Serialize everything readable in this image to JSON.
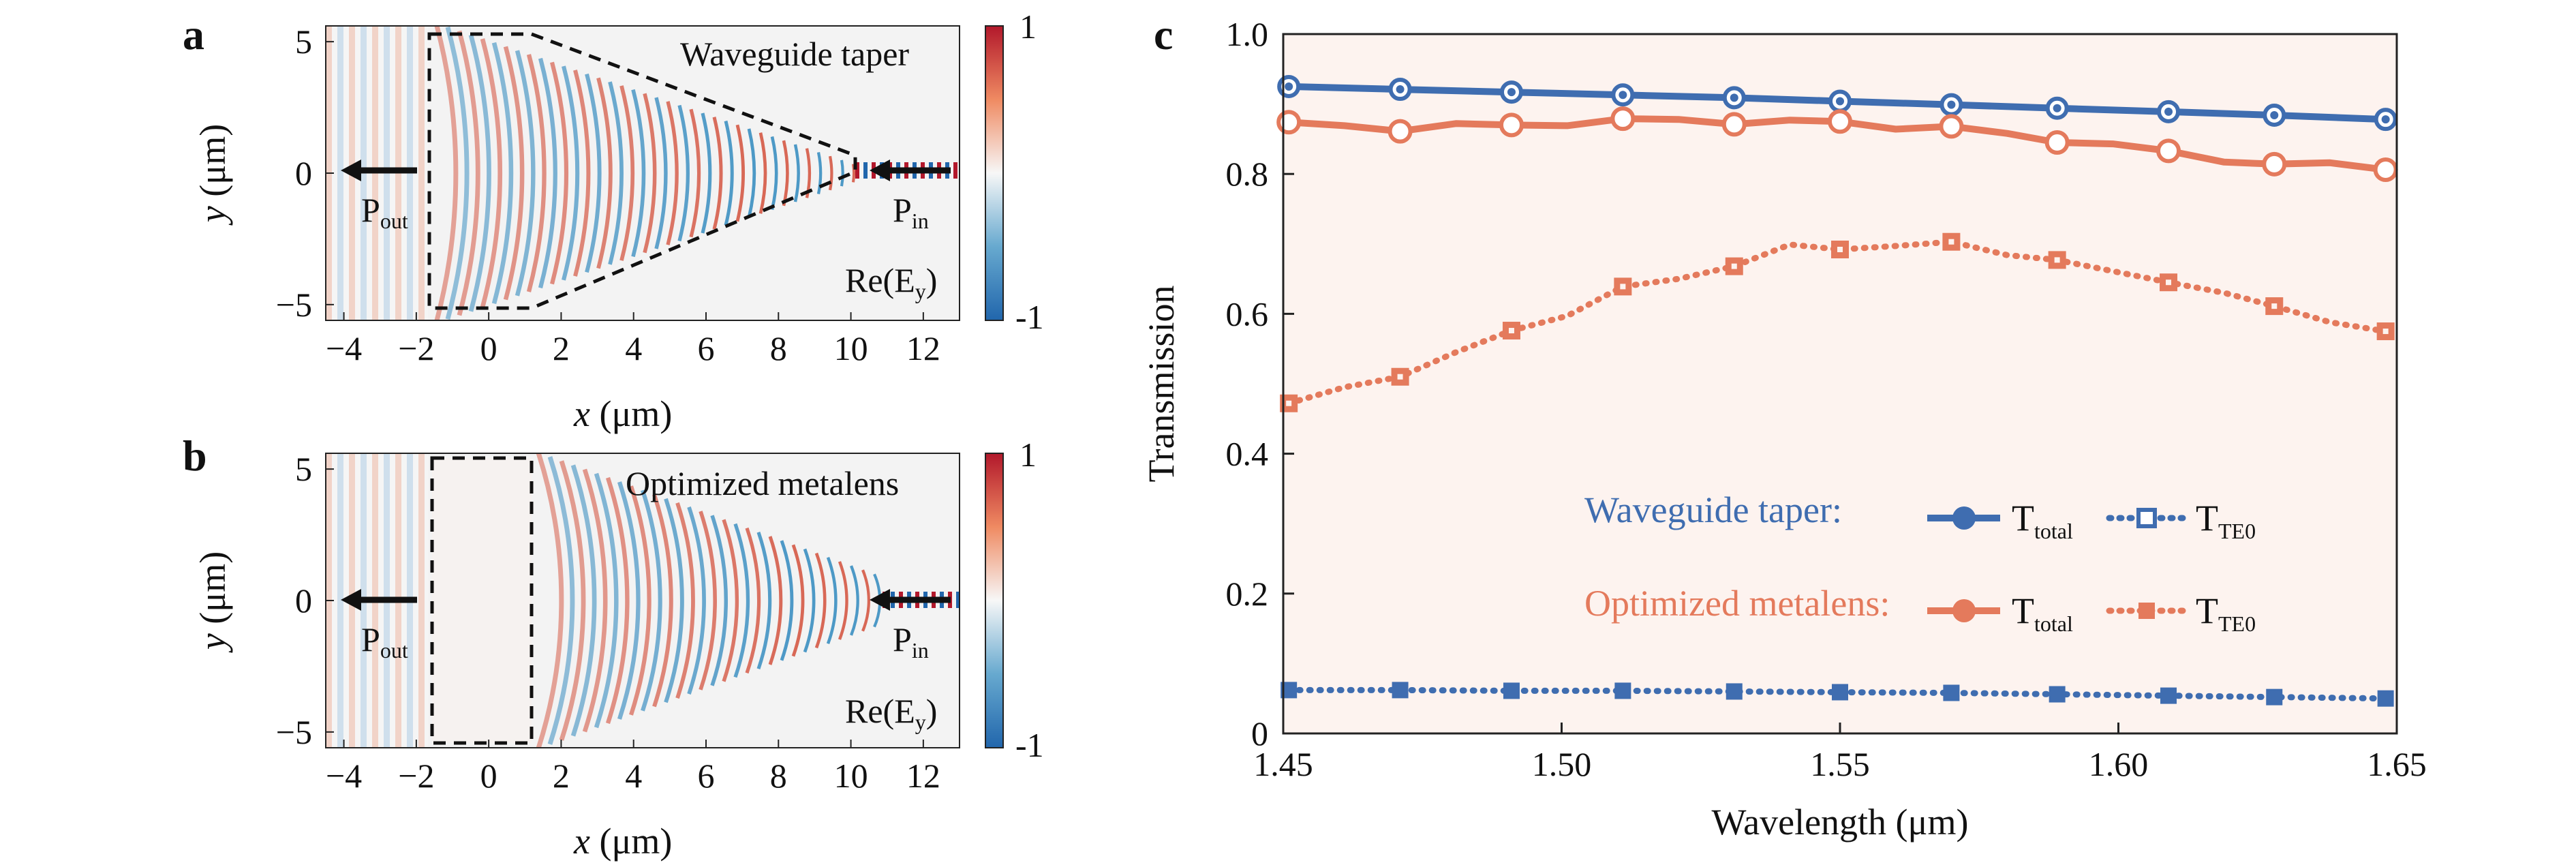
{
  "panels": {
    "a": {
      "label": "a",
      "title": "Waveguide taper",
      "field_label": "Re(E",
      "field_label_sub": "y",
      "field_label_close": ")",
      "p_out": "P",
      "p_out_sub": "out",
      "p_in": "P",
      "p_in_sub": "in",
      "xlabel_var": "x",
      "xlabel_unit": " (μm)",
      "ylabel_var": "y",
      "ylabel_unit": " (μm)",
      "x_ticks": [
        "−4",
        "−2",
        "0",
        "2",
        "4",
        "6",
        "8",
        "10",
        "12"
      ],
      "y_ticks": [
        "5",
        "0",
        "−5"
      ],
      "colorbar_max": "1",
      "colorbar_min": "-1"
    },
    "b": {
      "label": "b",
      "title": "Optimized metalens",
      "field_label": "Re(E",
      "field_label_sub": "y",
      "field_label_close": ")",
      "p_out": "P",
      "p_out_sub": "out",
      "p_in": "P",
      "p_in_sub": "in",
      "xlabel_var": "x",
      "xlabel_unit": " (μm)",
      "ylabel_var": "y",
      "ylabel_unit": " (μm)",
      "x_ticks": [
        "−4",
        "−2",
        "0",
        "2",
        "4",
        "6",
        "8",
        "10",
        "12"
      ],
      "y_ticks": [
        "5",
        "0",
        "−5"
      ],
      "colorbar_max": "1",
      "colorbar_min": "-1"
    },
    "c": {
      "label": "c",
      "legend": {
        "group1": "Waveguide taper:",
        "group2": "Optimized metalens:",
        "t_total": "T",
        "t_total_sub": "total",
        "t_te0": "T",
        "t_te0_sub": "TE0"
      }
    }
  },
  "colors": {
    "blue": "#3f6db0",
    "orange": "#e47a5c",
    "panel_bg": "#fdf3ef",
    "cbar_red": "#b2182b",
    "cbar_blue": "#2166ac"
  },
  "chart_data": [
    {
      "panel": "a",
      "type": "heatmap",
      "title": "Waveguide taper",
      "xlabel": "x (μm)",
      "ylabel": "y (μm)",
      "xlim": [
        -4.5,
        13
      ],
      "ylim": [
        -5.6,
        5.6
      ],
      "colorbar": [
        -1,
        1
      ],
      "colorbar_label": "Re(Ey)"
    },
    {
      "panel": "b",
      "type": "heatmap",
      "title": "Optimized metalens",
      "xlabel": "x (μm)",
      "ylabel": "y (μm)",
      "xlim": [
        -4.5,
        13
      ],
      "ylim": [
        -5.6,
        5.6
      ],
      "colorbar": [
        -1,
        1
      ],
      "colorbar_label": "Re(Ey)"
    },
    {
      "panel": "c",
      "type": "line",
      "xlabel": "Wavelength (μm)",
      "ylabel": "Transmission",
      "xlim": [
        1.45,
        1.65
      ],
      "ylim": [
        0,
        1.0
      ],
      "x_ticks": [
        1.45,
        1.5,
        1.55,
        1.6,
        1.65
      ],
      "x_tick_labels": [
        "1.45",
        "1.50",
        "1.55",
        "1.60",
        "1.65"
      ],
      "y_ticks": [
        0,
        0.2,
        0.4,
        0.6,
        0.8,
        1.0
      ],
      "y_tick_labels": [
        "0",
        "0.2",
        "0.4",
        "0.6",
        "0.8",
        "1.0"
      ],
      "marker_x": [
        1.451,
        1.471,
        1.491,
        1.511,
        1.531,
        1.55,
        1.57,
        1.589,
        1.609,
        1.628,
        1.648
      ],
      "series": [
        {
          "group": "Waveguide taper",
          "kind": "total",
          "style": "solid",
          "marker": "circle",
          "x": [
            1.451,
            1.471,
            1.491,
            1.511,
            1.531,
            1.55,
            1.57,
            1.589,
            1.609,
            1.628,
            1.648
          ],
          "values": [
            0.925,
            0.921,
            0.917,
            0.913,
            0.909,
            0.904,
            0.899,
            0.894,
            0.889,
            0.884,
            0.878
          ]
        },
        {
          "group": "Waveguide taper",
          "kind": "TE0",
          "style": "dotted",
          "marker": "square",
          "x": [
            1.451,
            1.471,
            1.491,
            1.511,
            1.531,
            1.55,
            1.57,
            1.589,
            1.609,
            1.628,
            1.648
          ],
          "values": [
            0.062,
            0.062,
            0.061,
            0.061,
            0.06,
            0.059,
            0.058,
            0.056,
            0.054,
            0.052,
            0.05
          ]
        },
        {
          "group": "Optimized metalens",
          "kind": "total",
          "style": "solid",
          "marker": "circle",
          "x": [
            1.451,
            1.461,
            1.471,
            1.481,
            1.491,
            1.501,
            1.511,
            1.521,
            1.531,
            1.541,
            1.55,
            1.56,
            1.57,
            1.58,
            1.589,
            1.599,
            1.609,
            1.619,
            1.628,
            1.638,
            1.648
          ],
          "values": [
            0.874,
            0.869,
            0.861,
            0.872,
            0.87,
            0.869,
            0.879,
            0.878,
            0.871,
            0.877,
            0.875,
            0.864,
            0.868,
            0.858,
            0.845,
            0.843,
            0.833,
            0.817,
            0.814,
            0.816,
            0.806
          ]
        },
        {
          "group": "Optimized metalens",
          "kind": "TE0",
          "style": "dotted",
          "marker": "square",
          "x": [
            1.451,
            1.461,
            1.471,
            1.481,
            1.491,
            1.501,
            1.511,
            1.521,
            1.531,
            1.541,
            1.55,
            1.56,
            1.57,
            1.58,
            1.589,
            1.599,
            1.609,
            1.619,
            1.628,
            1.638,
            1.648
          ],
          "values": [
            0.472,
            0.495,
            0.51,
            0.545,
            0.576,
            0.597,
            0.639,
            0.65,
            0.668,
            0.699,
            0.692,
            0.697,
            0.703,
            0.684,
            0.677,
            0.661,
            0.645,
            0.63,
            0.611,
            0.588,
            0.575
          ]
        }
      ]
    }
  ]
}
